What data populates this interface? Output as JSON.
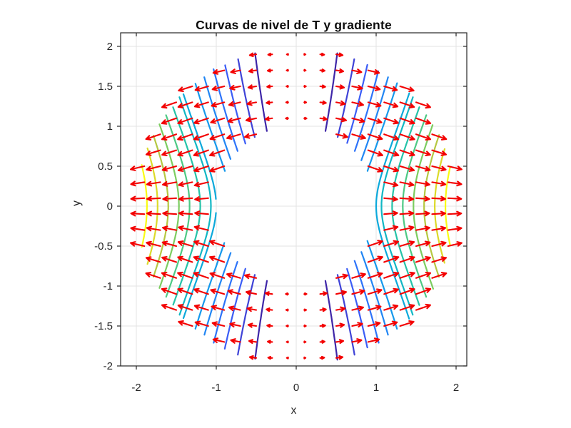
{
  "figure": {
    "background": "#ffffff"
  },
  "chart_data": {
    "type": "contour-quiver",
    "title": "Curvas de nivel de T y gradiente",
    "xlabel": "x",
    "ylabel": "y",
    "xlim": [
      -2.196,
      2.134
    ],
    "ylim": [
      -2.0,
      2.17
    ],
    "x_ticks": [
      -2,
      -1,
      0,
      1,
      2
    ],
    "y_ticks": [
      -2,
      -1.5,
      -1,
      -0.5,
      0,
      0.5,
      1,
      1.5,
      2
    ],
    "grid": true,
    "field": {
      "description": "Level curves of T(x,y) = x^2/sqrt(x^2+y^2) restricted to the annulus 1 <= r <= 2; red arrows are the gradient of T (quiver)",
      "annulus_r_inner": 1.0,
      "annulus_r_outer": 2.0
    },
    "contours": {
      "levels": [
        0.1333,
        0.2667,
        0.4,
        0.5333,
        0.6667,
        0.8,
        1.0,
        1.0667,
        1.2,
        1.3333,
        1.4667,
        1.6,
        1.7333,
        1.8667
      ],
      "linewidth": 2.2,
      "colormap_parula": [
        [
          0.0,
          [
            62,
            38,
            168
          ]
        ],
        [
          0.125,
          [
            64,
            85,
            245
          ]
        ],
        [
          0.25,
          [
            42,
            120,
            250
          ]
        ],
        [
          0.375,
          [
            23,
            151,
            238
          ]
        ],
        [
          0.5,
          [
            7,
            177,
            210
          ]
        ],
        [
          0.625,
          [
            39,
            196,
            165
          ]
        ],
        [
          0.75,
          [
            110,
            206,
            104
          ]
        ],
        [
          0.875,
          [
            202,
            198,
            55
          ]
        ],
        [
          1.0,
          [
            249,
            251,
            20
          ]
        ]
      ]
    },
    "quiver": {
      "grid_start": -1.9,
      "grid_step": 0.2,
      "grid_end": 1.9,
      "color": "#f30000",
      "linewidth": 2.1,
      "scale": 0.165
    },
    "styles": {
      "grid_color": "#e3e3e3",
      "axis_color": "#262626",
      "tick_label_color": "#262626",
      "tick_font_size": 15,
      "tick_length": 5
    }
  }
}
